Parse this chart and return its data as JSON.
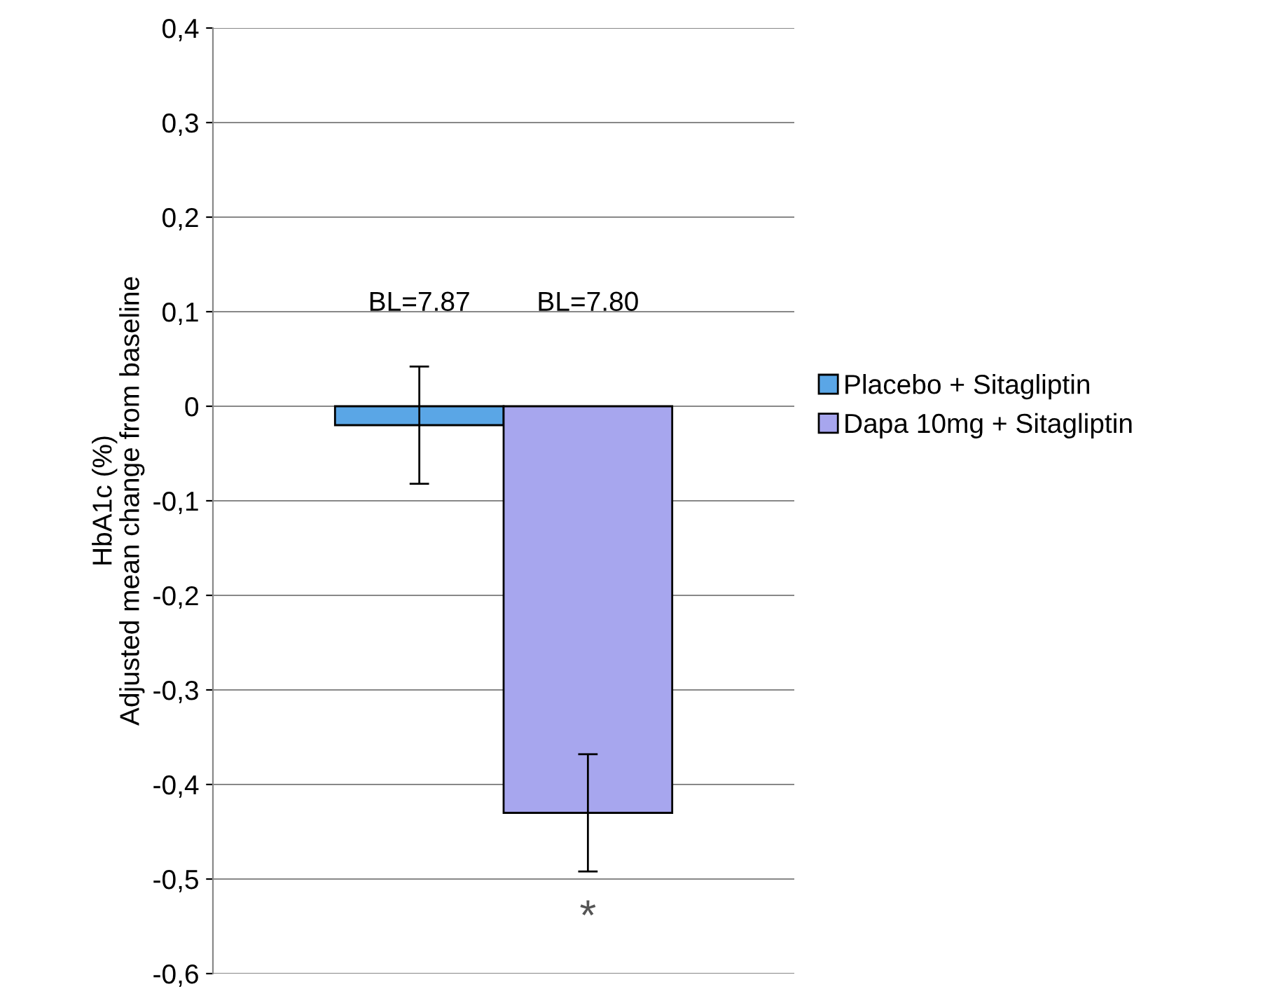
{
  "chart_data": {
    "type": "bar",
    "ylabel": "HbA1c (%)\nAdjusted mean change from baseline",
    "categories": [
      null
    ],
    "series": [
      {
        "name": "Placebo + Sitagliptin",
        "color": "#5aa6e6",
        "values": [
          -0.02
        ],
        "errors": [
          0.062
        ]
      },
      {
        "name": "Dapa 10mg + Sitagliptin",
        "color": "#a7a6ee",
        "values": [
          -0.43
        ],
        "errors": [
          0.062
        ]
      }
    ],
    "ylim": [
      -0.6,
      0.4
    ],
    "yticks": [
      {
        "value": -0.6,
        "label": "-0,6"
      },
      {
        "value": -0.5,
        "label": "-0,5"
      },
      {
        "value": -0.4,
        "label": "-0,4"
      },
      {
        "value": -0.3,
        "label": "-0,3"
      },
      {
        "value": -0.2,
        "label": "-0,2"
      },
      {
        "value": -0.1,
        "label": "-0,1"
      },
      {
        "value": 0,
        "label": "0"
      },
      {
        "value": 0.1,
        "label": "0,1"
      },
      {
        "value": 0.2,
        "label": "0,2"
      },
      {
        "value": 0.3,
        "label": "0,3"
      },
      {
        "value": 0.4,
        "label": "0,4"
      }
    ],
    "annotations": [
      "BL=7.87",
      "BL=7.80",
      "*"
    ],
    "grid": "y",
    "legend": "right"
  }
}
